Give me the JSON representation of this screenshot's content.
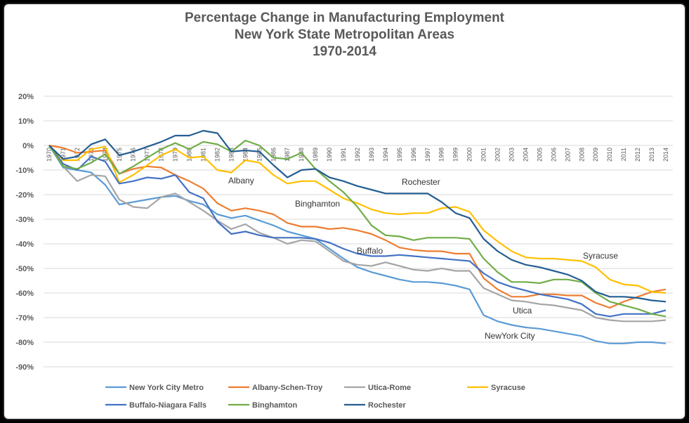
{
  "chart_data": {
    "type": "line",
    "title": [
      "Percentage Change in Manufacturing Employment",
      "New York State Metropolitan Areas",
      "1970-2014"
    ],
    "xlabel": "",
    "ylabel": "",
    "x": [
      1970,
      1971,
      1972,
      1973,
      1974,
      1975,
      1976,
      1977,
      1978,
      1979,
      1980,
      1981,
      1982,
      1983,
      1984,
      1985,
      1986,
      1987,
      1988,
      1989,
      1990,
      1991,
      1992,
      1993,
      1994,
      1995,
      1996,
      1997,
      1998,
      1999,
      2000,
      2001,
      2002,
      2003,
      2004,
      2005,
      2006,
      2007,
      2008,
      2009,
      2010,
      2011,
      2012,
      2013,
      2014
    ],
    "ylim": [
      -90,
      20
    ],
    "yticks": [
      20,
      10,
      0,
      -10,
      -20,
      -30,
      -40,
      -50,
      -60,
      -70,
      -80,
      -90
    ],
    "ytick_format": "percent",
    "grid": true,
    "legend_position": "bottom",
    "series": [
      {
        "name": "New York City Metro",
        "color": "#5B9BD5",
        "values": [
          0,
          -9,
          -10,
          -11,
          -16,
          -24,
          -23,
          -22,
          -21,
          -20.5,
          -22.5,
          -24,
          -28,
          -29.5,
          -28.5,
          -30.5,
          -32.5,
          -35,
          -36.5,
          -38,
          -42,
          -46,
          -49.5,
          -51.5,
          -53,
          -54.5,
          -55.5,
          -55.5,
          -56,
          -57,
          -58.5,
          -69,
          -71.5,
          -73,
          -74,
          -74.5,
          -75.5,
          -76.5,
          -77.5,
          -79.5,
          -80.5,
          -80.5,
          -80,
          -80,
          -80.5
        ]
      },
      {
        "name": "Albany-Schen-Troy",
        "color": "#ED7D31",
        "values": [
          0,
          -1,
          -3,
          -2.5,
          -2,
          -11.5,
          -9.5,
          -8.5,
          -9,
          -12,
          -14.5,
          -17.5,
          -23.5,
          -26.5,
          -25.5,
          -26.5,
          -28,
          -31.5,
          -33,
          -33,
          -34,
          -33.5,
          -34.5,
          -36,
          -38.5,
          -41.5,
          -42.5,
          -43,
          -43,
          -44,
          -44,
          -54,
          -58.5,
          -61.5,
          -61.5,
          -60.5,
          -60.5,
          -61,
          -61,
          -64,
          -66,
          -63.5,
          -61.5,
          -59.5,
          -58.5
        ]
      },
      {
        "name": "Utica-Rome",
        "color": "#A5A5A5",
        "values": [
          0,
          -8.5,
          -14.5,
          -12,
          -12.5,
          -22,
          -25,
          -25.5,
          -21,
          -19.5,
          -23,
          -26.5,
          -30.5,
          -34,
          -32,
          -35.5,
          -37.5,
          -40,
          -38.5,
          -39,
          -43,
          -47,
          -48.5,
          -49,
          -47.5,
          -49,
          -50.5,
          -51,
          -50,
          -51,
          -51,
          -58,
          -60.5,
          -63,
          -63.5,
          -64.5,
          -65,
          -66,
          -67,
          -70,
          -71,
          -71.5,
          -71.5,
          -71.5,
          -71
        ]
      },
      {
        "name": "Syracuse",
        "color": "#FFC000",
        "values": [
          0,
          -6,
          -6,
          -1.5,
          -0.5,
          -15,
          -12,
          -8,
          -4,
          -1.5,
          -5,
          -4.5,
          -10,
          -11,
          -6,
          -7,
          -12,
          -15.5,
          -14.5,
          -14.5,
          -18,
          -21.5,
          -23.5,
          -26,
          -27.5,
          -28,
          -27.5,
          -27.5,
          -25.5,
          -25,
          -27,
          -34.5,
          -39,
          -43,
          -45.5,
          -46,
          -46,
          -46.5,
          -47,
          -49.5,
          -54.5,
          -56.5,
          -57,
          -59.5,
          -60
        ]
      },
      {
        "name": "Buffalo-Niagara  Falls",
        "color": "#4472C4",
        "values": [
          0,
          -7.5,
          -10,
          -4.5,
          -6.5,
          -15.5,
          -14.5,
          -13,
          -13.5,
          -12,
          -19,
          -21.5,
          -31,
          -36,
          -35,
          -36.5,
          -37.5,
          -37.5,
          -37.5,
          -38,
          -39.5,
          -42,
          -44,
          -45,
          -45,
          -44.5,
          -45,
          -45.5,
          -46,
          -46.5,
          -47,
          -52,
          -55.5,
          -57.5,
          -59,
          -60.5,
          -61.5,
          -62.5,
          -64.5,
          -68.5,
          -69.5,
          -68.5,
          -68.5,
          -68.5,
          -67
        ]
      },
      {
        "name": "Binghamton",
        "color": "#70AD47",
        "values": [
          0,
          -8.5,
          -9.5,
          -7,
          -3.5,
          -11.5,
          -8.5,
          -5,
          -1.5,
          1,
          -1.5,
          1.5,
          0.5,
          -2.5,
          2,
          0,
          -5,
          -5.5,
          -3,
          -9.5,
          -14.5,
          -19,
          -25,
          -32.5,
          -36.5,
          -37,
          -38.5,
          -37.5,
          -37.5,
          -37.5,
          -38,
          -46,
          -51.5,
          -55.5,
          -55.5,
          -56,
          -54.5,
          -54.5,
          -55.5,
          -60,
          -63.5,
          -65,
          -66.5,
          -68.5,
          -69.5
        ]
      },
      {
        "name": "Rochester",
        "color": "#255E91",
        "values": [
          0,
          -5.5,
          -4.5,
          0.5,
          2.5,
          -4,
          -2.5,
          -0.5,
          1.5,
          4,
          4,
          6,
          5,
          -2.5,
          -2,
          -2.5,
          -8,
          -13,
          -10,
          -9.5,
          -13,
          -14.5,
          -16.5,
          -18,
          -19.5,
          -19.5,
          -19.5,
          -19.5,
          -23,
          -27.5,
          -29.5,
          -38,
          -43,
          -46.5,
          -48.5,
          -49.5,
          -51,
          -52.5,
          -55,
          -59.5,
          -61.5,
          -61.5,
          -62,
          -63,
          -63.5
        ]
      }
    ],
    "annotations": [
      "Albany",
      "Binghamton",
      "Rochester",
      "Buffalo",
      "Utica",
      "NewYork City",
      "Syracuse"
    ]
  }
}
